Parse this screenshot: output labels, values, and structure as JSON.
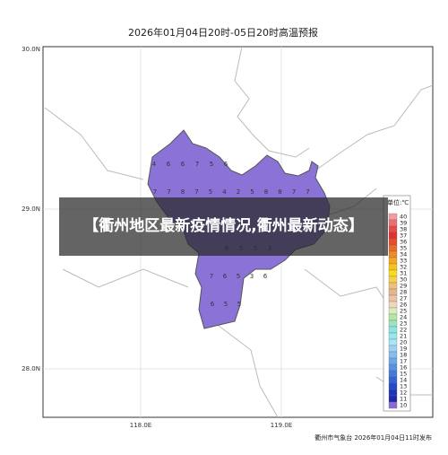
{
  "header": {
    "title": "2026年01月04日20时-05日20时高温预报"
  },
  "axes": {
    "lat_labels": [
      "30.0N",
      "29.0N",
      "28.0N"
    ],
    "lon_labels": [
      "118.0E",
      "119.0E"
    ]
  },
  "map_values": [
    [
      4,
      6,
      6,
      7,
      5,
      6
    ],
    [
      7,
      7,
      8,
      7,
      5,
      4,
      2,
      5,
      8,
      8,
      7,
      7
    ],
    [
      6,
      5,
      5,
      3
    ],
    [
      7,
      6,
      5,
      3,
      6
    ],
    [
      6,
      5,
      5
    ]
  ],
  "legend": {
    "title": "单位:℃",
    "items": [
      {
        "label": 40,
        "color": "#f29d9d"
      },
      {
        "label": 39,
        "color": "#ee6f6f"
      },
      {
        "label": 38,
        "color": "#e84a4a"
      },
      {
        "label": 37,
        "color": "#e03030"
      },
      {
        "label": 36,
        "color": "#e84c2c"
      },
      {
        "label": 35,
        "color": "#ee6a2a"
      },
      {
        "label": 34,
        "color": "#f28a28"
      },
      {
        "label": 33,
        "color": "#f5a623"
      },
      {
        "label": 32,
        "color": "#f8c21e"
      },
      {
        "label": 31,
        "color": "#fadc1a"
      },
      {
        "label": 30,
        "color": "#f6d24c"
      },
      {
        "label": 29,
        "color": "#eec27a"
      },
      {
        "label": 28,
        "color": "#e6b48e"
      },
      {
        "label": 27,
        "color": "#ecc4a4"
      },
      {
        "label": 26,
        "color": "#f2d6bc"
      },
      {
        "label": 25,
        "color": "#d9ecc0"
      },
      {
        "label": 24,
        "color": "#b6e6a4"
      },
      {
        "label": 23,
        "color": "#9ee2c4"
      },
      {
        "label": 22,
        "color": "#8ee4e0"
      },
      {
        "label": 21,
        "color": "#96e8f0"
      },
      {
        "label": 20,
        "color": "#a8e4f6"
      },
      {
        "label": 19,
        "color": "#9ed0f2"
      },
      {
        "label": 18,
        "color": "#86bcee"
      },
      {
        "label": 17,
        "color": "#6ea6e8"
      },
      {
        "label": 16,
        "color": "#5a90e2"
      },
      {
        "label": 15,
        "color": "#4678da"
      },
      {
        "label": 14,
        "color": "#3462d2"
      },
      {
        "label": 13,
        "color": "#2448c8"
      },
      {
        "label": 12,
        "color": "#1a34bc"
      },
      {
        "label": 11,
        "color": "#2226a8"
      },
      {
        "label": 10,
        "color": "#8a6ad6"
      }
    ]
  },
  "footer": {
    "issuer": "衢州市气象台 2026年01月04日11时发布"
  },
  "banner": {
    "text": "【衢州地区最新疫情情况,衢州最新动态】"
  }
}
